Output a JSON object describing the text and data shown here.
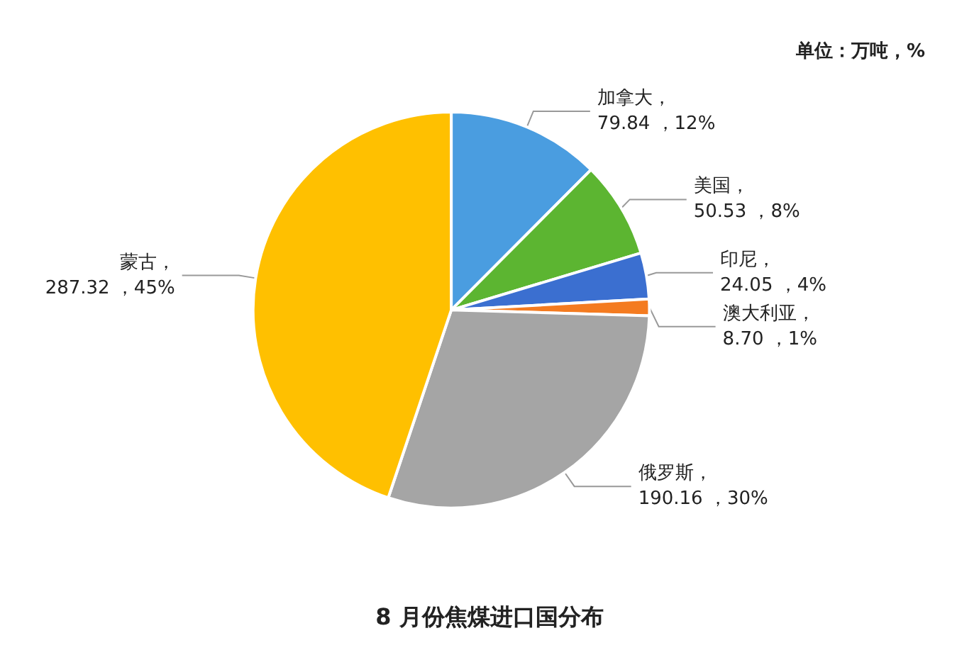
{
  "chart_data": {
    "type": "pie",
    "title": "8 月份焦煤进口国分布",
    "annotations": [
      "单位：万吨，%"
    ],
    "categories": [
      "加拿大",
      "美国",
      "印尼",
      "澳大利亚",
      "俄罗斯",
      "蒙古"
    ],
    "values": [
      79.84,
      50.53,
      24.05,
      8.7,
      190.16,
      287.32
    ],
    "value_labels": [
      "，79.84 ，12%",
      "，50.53 ，8%",
      "，24.05 ，4%",
      "，8.70 ，1%",
      "，190.16 ，30%",
      "，287.32 ，45%"
    ],
    "colors": [
      "#4a9de0",
      "#5cb531",
      "#3b6fd0",
      "#f47b20",
      "#a5a5a5",
      "#ffc000"
    ],
    "legend": false
  }
}
